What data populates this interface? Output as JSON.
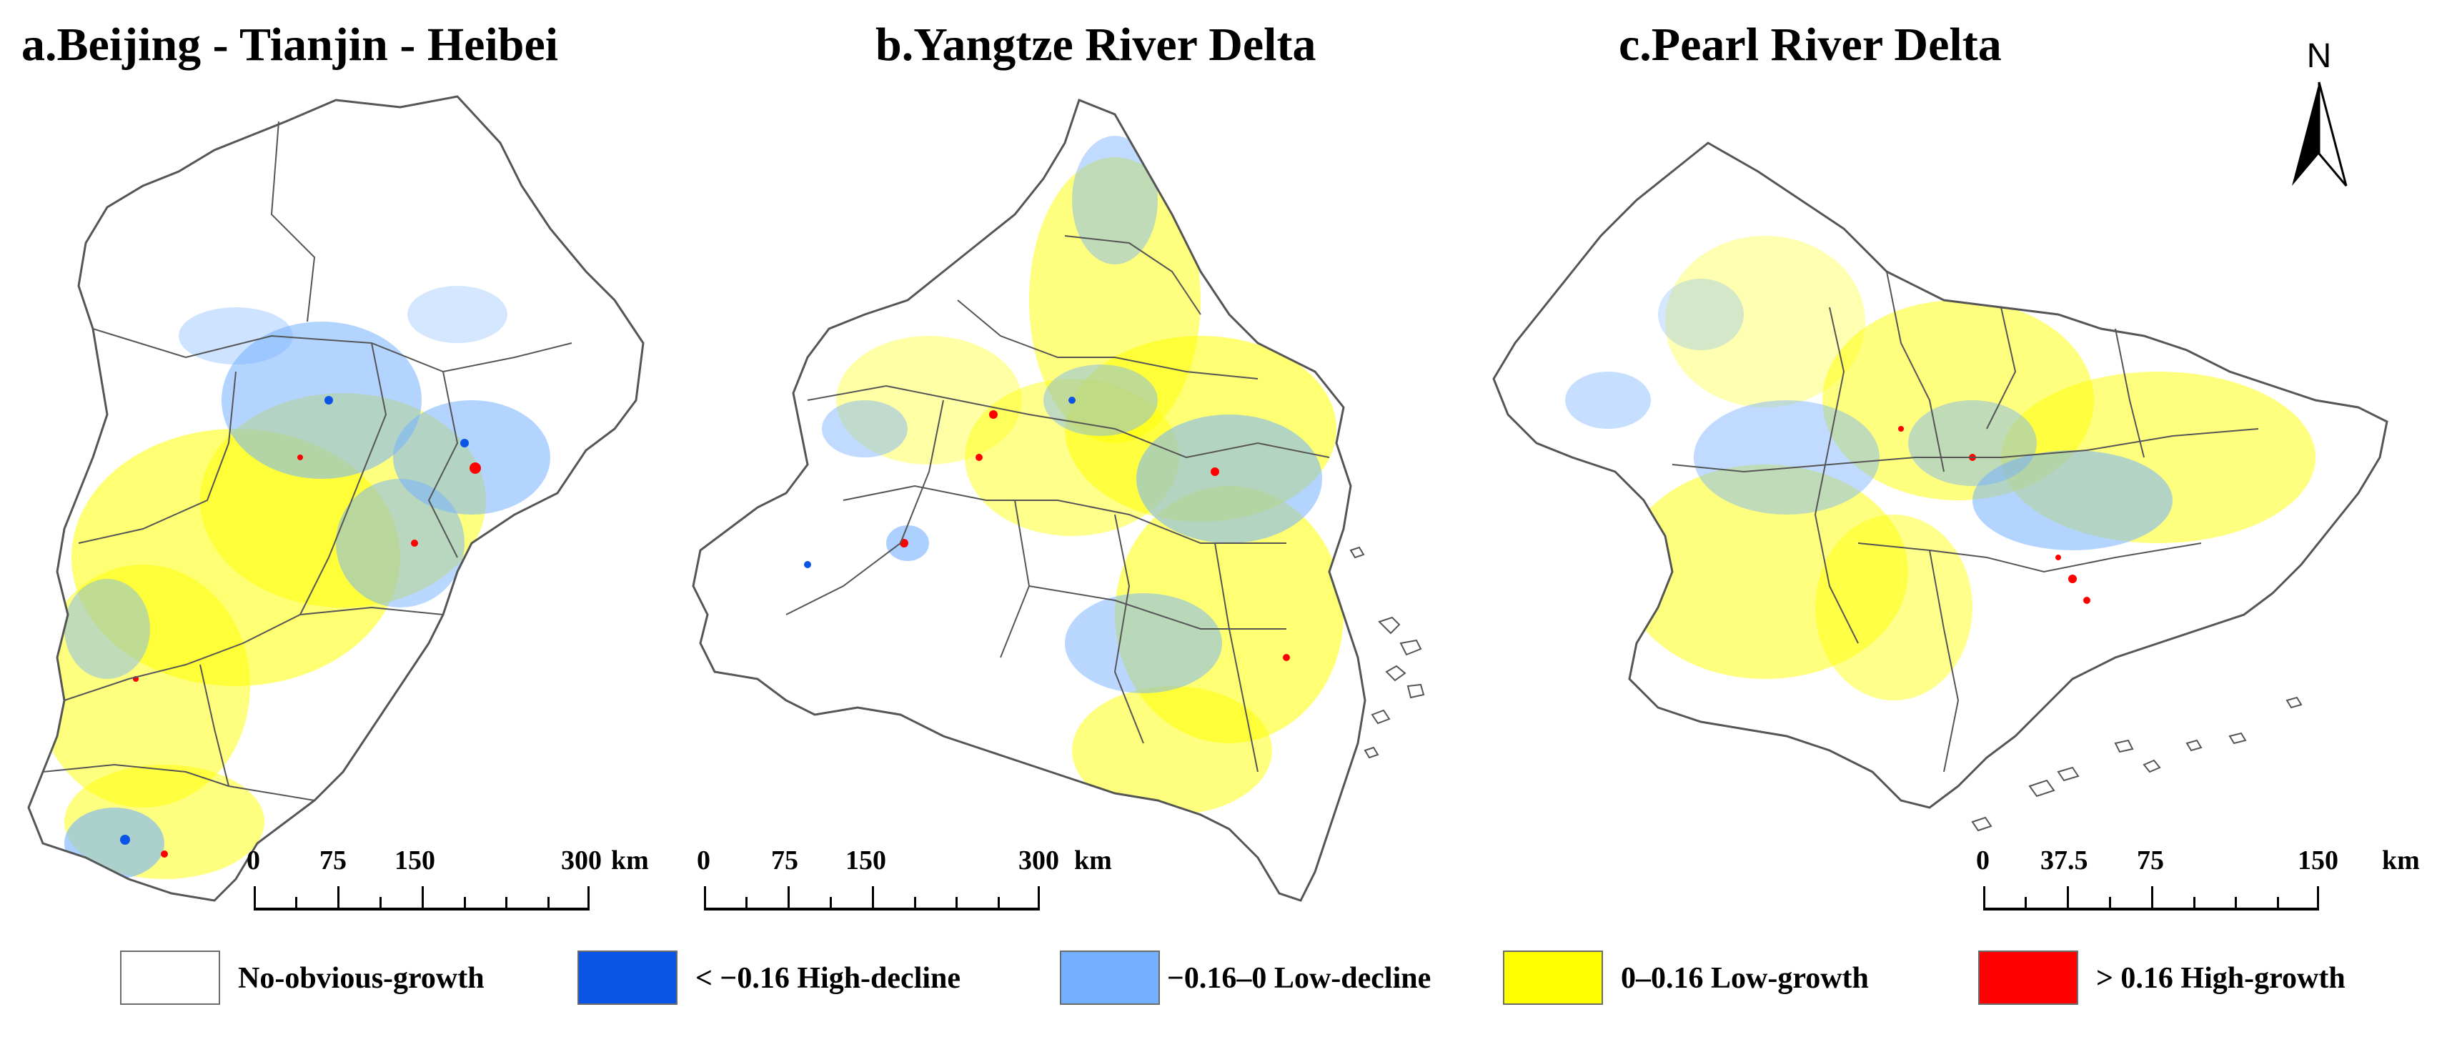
{
  "panels": {
    "a": {
      "title": "a.Beijing - Tianjin - Heibei",
      "scale": {
        "ticks": [
          "0",
          "75",
          "150",
          "300"
        ],
        "unit": "km"
      }
    },
    "b": {
      "title": "b.Yangtze River Delta",
      "scale": {
        "ticks": [
          "0",
          "75",
          "150",
          "300"
        ],
        "unit": "km"
      }
    },
    "c": {
      "title": "c.Pearl River Delta",
      "scale": {
        "ticks": [
          "0",
          "37.5",
          "75",
          "150"
        ],
        "unit": "km"
      }
    }
  },
  "north_arrow": {
    "label": "N"
  },
  "legend": [
    {
      "label": "No-obvious-growth",
      "color": "#ffffff"
    },
    {
      "label": "< −0.16 High-decline",
      "color": "#0a55e6"
    },
    {
      "label": "−0.16–0 Low-decline",
      "color": "#74b0ff"
    },
    {
      "label": "0–0.16 Low-growth",
      "color": "#ffff00"
    },
    {
      "label": "> 0.16 High-growth",
      "color": "#ff0000"
    }
  ],
  "colors": {
    "boundary": "#555555",
    "high_decline": "#0a55e6",
    "low_decline": "#74b0ff",
    "low_growth": "#ffff00",
    "high_growth": "#ff0000"
  }
}
